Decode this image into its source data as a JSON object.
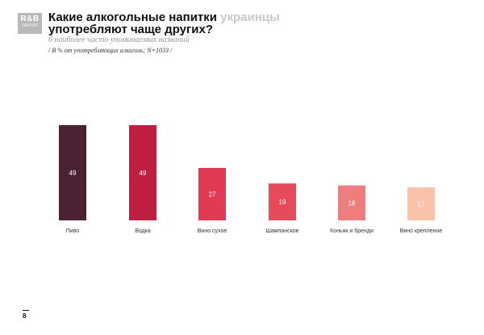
{
  "logo": {
    "line1": "R&B",
    "line2": "GROUP",
    "line3": ""
  },
  "header": {
    "title_part1": "Какие алкогольные напитки ",
    "title_accent": "украинцы",
    "title_part2": "употребляют чаще других?",
    "subtitle": "6 наиболее часто упоминаемых названий",
    "note": "/ В % от употребляющих алкоголь; N=1033 /"
  },
  "page_number": "8",
  "chart_data": {
    "type": "bar",
    "categories": [
      "Пиво",
      "Водка",
      "Вино сухое",
      "Шампанское",
      "Коньяк и бренди",
      "Вино крепленое"
    ],
    "values": [
      49,
      49,
      27,
      19,
      18,
      17
    ],
    "colors": [
      "#4b2233",
      "#be1f3f",
      "#e03a57",
      "#e74a5b",
      "#f07d7d",
      "#f8c3a8"
    ],
    "label_colors": [
      "#ffffff",
      "#ffffff",
      "#ffffff",
      "#ffffff",
      "#ffffff",
      "#ffffff"
    ],
    "ylim": [
      0,
      49
    ],
    "grid": false,
    "legend": "none"
  }
}
